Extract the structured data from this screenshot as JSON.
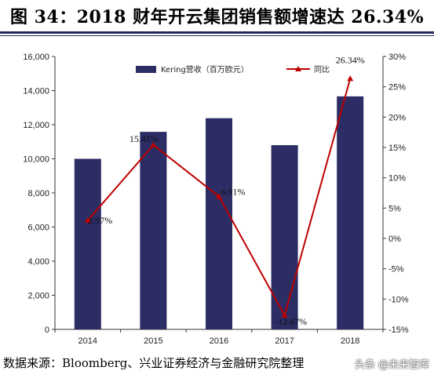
{
  "title": "图 34：2018 财年开云集团销售额增速达 26.34%",
  "source": "数据来源：Bloomberg、兴业证券经济与金融研究院整理",
  "watermark": "头条 @未来智库",
  "colors": {
    "bar": "#2b2d64",
    "line": "#c00000",
    "rule": "#1f2a5c"
  },
  "chart_data": {
    "type": "bar+line",
    "categories": [
      "2014",
      "2015",
      "2016",
      "2017",
      "2018"
    ],
    "series": [
      {
        "name": "Kering营收（百万欧元）",
        "type": "bar",
        "axis": "left",
        "values": [
          10000,
          11580,
          12380,
          10800,
          13660
        ]
      },
      {
        "name": "同比",
        "type": "line",
        "axis": "right",
        "values": [
          2.97,
          15.41,
          6.91,
          -12.67,
          26.34
        ],
        "labels": [
          "2.97%",
          "15.41%",
          "6.91%",
          "-12.67%",
          "26.34%"
        ]
      }
    ],
    "left_axis": {
      "ylim": [
        0,
        16000
      ],
      "ticks": [
        "0",
        "2,000",
        "4,000",
        "6,000",
        "8,000",
        "10,000",
        "12,000",
        "14,000",
        "16,000"
      ]
    },
    "right_axis": {
      "ylim": [
        -15,
        30
      ],
      "ticks": [
        "-15%",
        "-10%",
        "-5%",
        "0%",
        "5%",
        "10%",
        "15%",
        "20%",
        "25%",
        "30%"
      ]
    },
    "legend": "top",
    "grid": false
  }
}
